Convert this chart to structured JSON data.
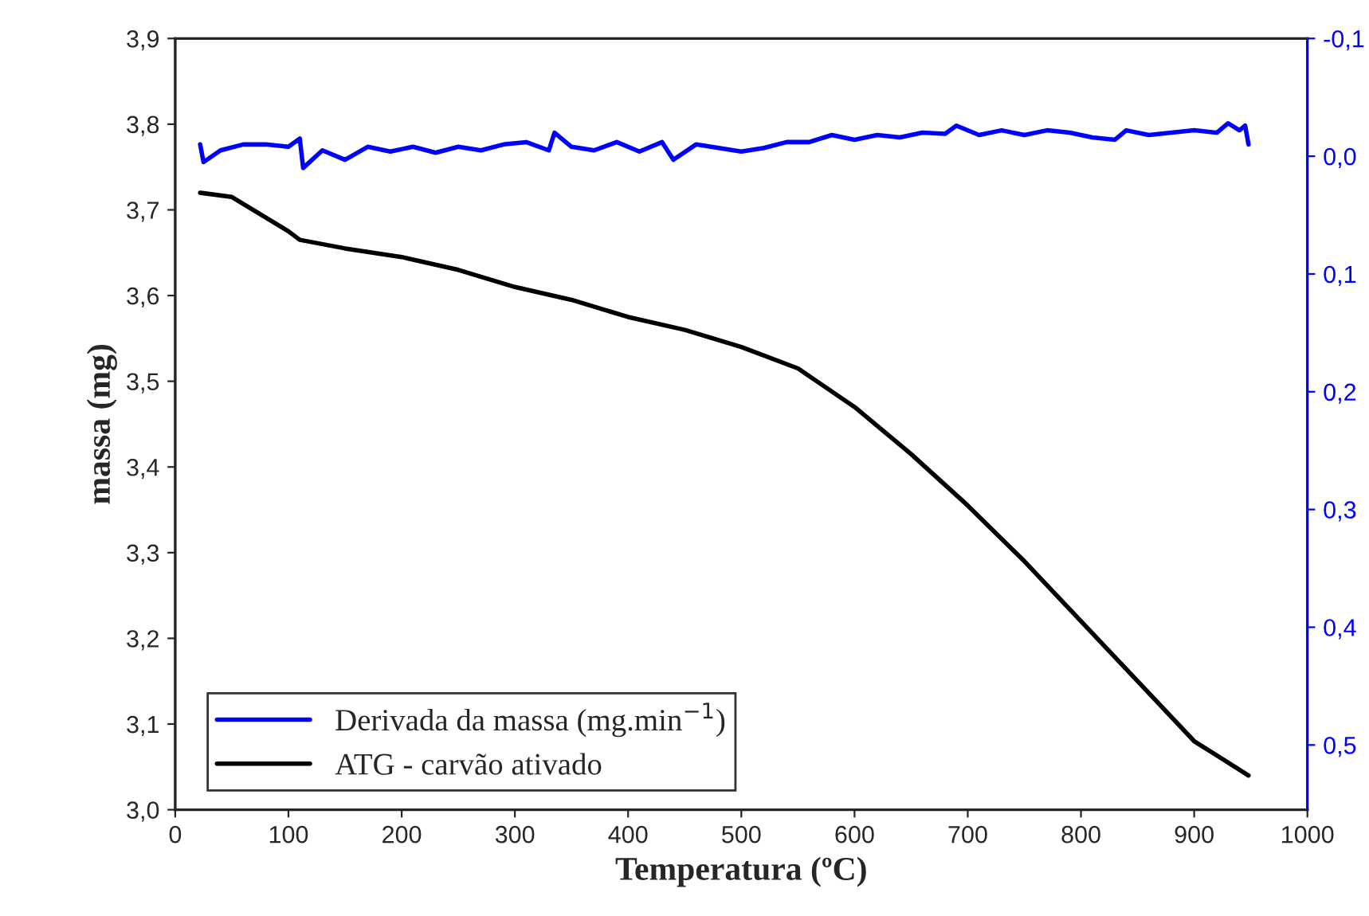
{
  "chart_data": {
    "type": "line",
    "xlabel": "Temperatura (ºC)",
    "ylabel": "massa (mg)",
    "xlim": [
      0,
      1000
    ],
    "xticks": [
      0,
      100,
      200,
      300,
      400,
      500,
      600,
      700,
      800,
      900,
      1000
    ],
    "ylim": [
      3.0,
      3.9
    ],
    "yticks": [
      {
        "value": 3.0,
        "label": "3,0"
      },
      {
        "value": 3.1,
        "label": "3,1"
      },
      {
        "value": 3.2,
        "label": "3,2"
      },
      {
        "value": 3.3,
        "label": "3,3"
      },
      {
        "value": 3.4,
        "label": "3,4"
      },
      {
        "value": 3.5,
        "label": "3,5"
      },
      {
        "value": 3.6,
        "label": "3,6"
      },
      {
        "value": 3.7,
        "label": "3,7"
      },
      {
        "value": 3.8,
        "label": "3,8"
      },
      {
        "value": 3.9,
        "label": "3,9"
      }
    ],
    "y2lim": [
      0.555,
      -0.1
    ],
    "y2ticks": [
      {
        "value": -0.1,
        "label": "-0,1"
      },
      {
        "value": 0.0,
        "label": "0,0"
      },
      {
        "value": 0.1,
        "label": "0,1"
      },
      {
        "value": 0.2,
        "label": "0,2"
      },
      {
        "value": 0.3,
        "label": "0,3"
      },
      {
        "value": 0.4,
        "label": "0,4"
      },
      {
        "value": 0.5,
        "label": "0,5"
      }
    ],
    "legend": "bottom left",
    "grid": false,
    "line_style": "solid",
    "marker": "none",
    "series": [
      {
        "name": "Derivada da massa (mg.min$^{−1}$)",
        "color": "#0000ff",
        "axis": "y2",
        "x": [
          22,
          25,
          40,
          60,
          80,
          100,
          110,
          113,
          130,
          150,
          170,
          190,
          210,
          230,
          250,
          270,
          290,
          310,
          330,
          335,
          350,
          370,
          390,
          410,
          430,
          440,
          460,
          480,
          500,
          520,
          540,
          560,
          580,
          600,
          620,
          640,
          660,
          680,
          690,
          710,
          730,
          750,
          770,
          790,
          810,
          830,
          840,
          860,
          880,
          900,
          920,
          930,
          940,
          945,
          948
        ],
        "values": [
          -0.01,
          0.005,
          -0.005,
          -0.01,
          -0.01,
          -0.008,
          -0.015,
          0.01,
          -0.005,
          0.003,
          -0.008,
          -0.004,
          -0.008,
          -0.003,
          -0.008,
          -0.005,
          -0.01,
          -0.012,
          -0.005,
          -0.02,
          -0.008,
          -0.005,
          -0.012,
          -0.004,
          -0.012,
          0.003,
          -0.01,
          -0.007,
          -0.004,
          -0.007,
          -0.012,
          -0.012,
          -0.018,
          -0.014,
          -0.018,
          -0.016,
          -0.02,
          -0.019,
          -0.026,
          -0.018,
          -0.022,
          -0.018,
          -0.022,
          -0.02,
          -0.016,
          -0.014,
          -0.022,
          -0.018,
          -0.02,
          -0.022,
          -0.02,
          -0.028,
          -0.022,
          -0.026,
          -0.01
        ]
      },
      {
        "name": "ATG - carvão ativado",
        "color": "#000000",
        "x": [
          22,
          50,
          100,
          110,
          150,
          200,
          250,
          300,
          350,
          400,
          450,
          500,
          550,
          600,
          650,
          700,
          750,
          800,
          850,
          900,
          948
        ],
        "values": [
          3.72,
          3.715,
          3.675,
          3.665,
          3.655,
          3.645,
          3.63,
          3.61,
          3.595,
          3.575,
          3.56,
          3.54,
          3.515,
          3.47,
          3.415,
          3.355,
          3.29,
          3.22,
          3.15,
          3.08,
          3.04
        ]
      }
    ]
  }
}
